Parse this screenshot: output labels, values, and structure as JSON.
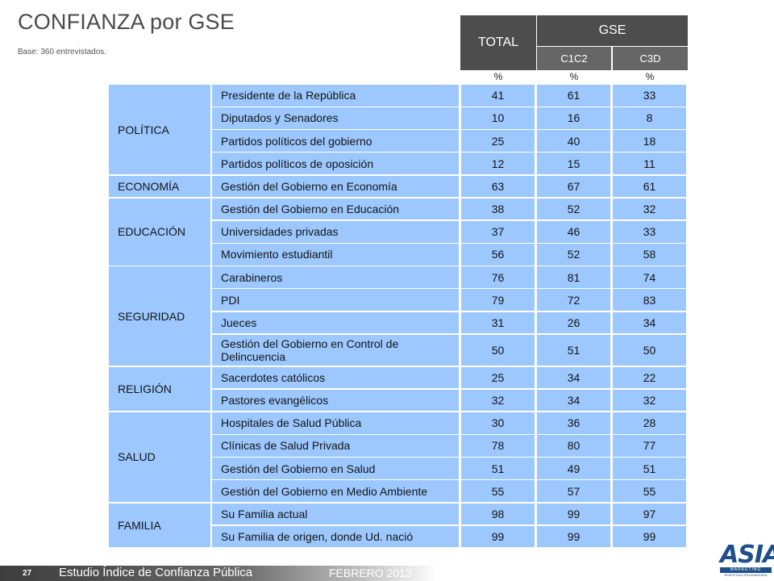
{
  "title": "CONFIANZA por GSE",
  "base": "Base:  360 entrevistados.",
  "header": {
    "total": "TOTAL",
    "gse": "GSE",
    "sub": [
      "C1C2",
      "C3D"
    ],
    "pct": [
      "%",
      "%",
      "%"
    ]
  },
  "categories": [
    {
      "name": "POLÍTICA",
      "rows": [
        {
          "label": "Presidente de la República",
          "total": "41",
          "c1c2": "61",
          "c3d": "33"
        },
        {
          "label": "Diputados y Senadores",
          "total": "10",
          "c1c2": "16",
          "c3d": "8"
        },
        {
          "label": "Partidos políticos del gobierno",
          "total": "25",
          "c1c2": "40",
          "c3d": "18"
        },
        {
          "label": "Partidos políticos de oposición",
          "total": "12",
          "c1c2": "15",
          "c3d": "11"
        }
      ]
    },
    {
      "name": "ECONOMÍA",
      "rows": [
        {
          "label": "Gestión del Gobierno en Economía",
          "total": "63",
          "c1c2": "67",
          "c3d": "61"
        }
      ]
    },
    {
      "name": "EDUCACIÓN",
      "rows": [
        {
          "label": "Gestión del Gobierno en Educación",
          "total": "38",
          "c1c2": "52",
          "c3d": "32"
        },
        {
          "label": "Universidades privadas",
          "total": "37",
          "c1c2": "46",
          "c3d": "33"
        },
        {
          "label": "Movimiento estudiantil",
          "total": "56",
          "c1c2": "52",
          "c3d": "58"
        }
      ]
    },
    {
      "name": "SEGURIDAD",
      "rows": [
        {
          "label": "Carabineros",
          "total": "76",
          "c1c2": "81",
          "c3d": "74"
        },
        {
          "label": "PDI",
          "total": "79",
          "c1c2": "72",
          "c3d": "83"
        },
        {
          "label": "Jueces",
          "total": "31",
          "c1c2": "26",
          "c3d": "34"
        },
        {
          "label": "Gestión del Gobierno en Control de Delincuencia",
          "total": "50",
          "c1c2": "51",
          "c3d": "50"
        }
      ]
    },
    {
      "name": "RELIGIÓN",
      "rows": [
        {
          "label": "Sacerdotes católicos",
          "total": "25",
          "c1c2": "34",
          "c3d": "22"
        },
        {
          "label": "Pastores evangélicos",
          "total": "32",
          "c1c2": "34",
          "c3d": "32"
        }
      ]
    },
    {
      "name": "SALUD",
      "rows": [
        {
          "label": "Hospitales de Salud Pública",
          "total": "30",
          "c1c2": "36",
          "c3d": "28"
        },
        {
          "label": "Clínicas de Salud Privada",
          "total": "78",
          "c1c2": "80",
          "c3d": "77"
        },
        {
          "label": "Gestión del Gobierno en Salud",
          "total": "51",
          "c1c2": "49",
          "c3d": "51"
        },
        {
          "label": "Gestión del Gobierno en Medio Ambiente",
          "total": "55",
          "c1c2": "57",
          "c3d": "55"
        }
      ]
    },
    {
      "name": "FAMILIA",
      "rows": [
        {
          "label": "Su Familia actual",
          "total": "98",
          "c1c2": "99",
          "c3d": "97"
        },
        {
          "label": "Su Familia de origen, donde Ud. nació",
          "total": "99",
          "c1c2": "99",
          "c3d": "99"
        }
      ]
    }
  ],
  "footer": {
    "page_number": "27",
    "study": "Estudio  Índice de Confianza Pública",
    "date": "FEBRERO 2013"
  },
  "logo": {
    "text": "ASIA",
    "sub": "MARKETING",
    "tagline": "INVESTIGACIÓN AVANZADA"
  },
  "colors": {
    "cell_bg": "#9cc8ff",
    "header_dark": "#4d4d4d",
    "header_sub": "#666666",
    "logo_blue": "#1f4f8a"
  }
}
